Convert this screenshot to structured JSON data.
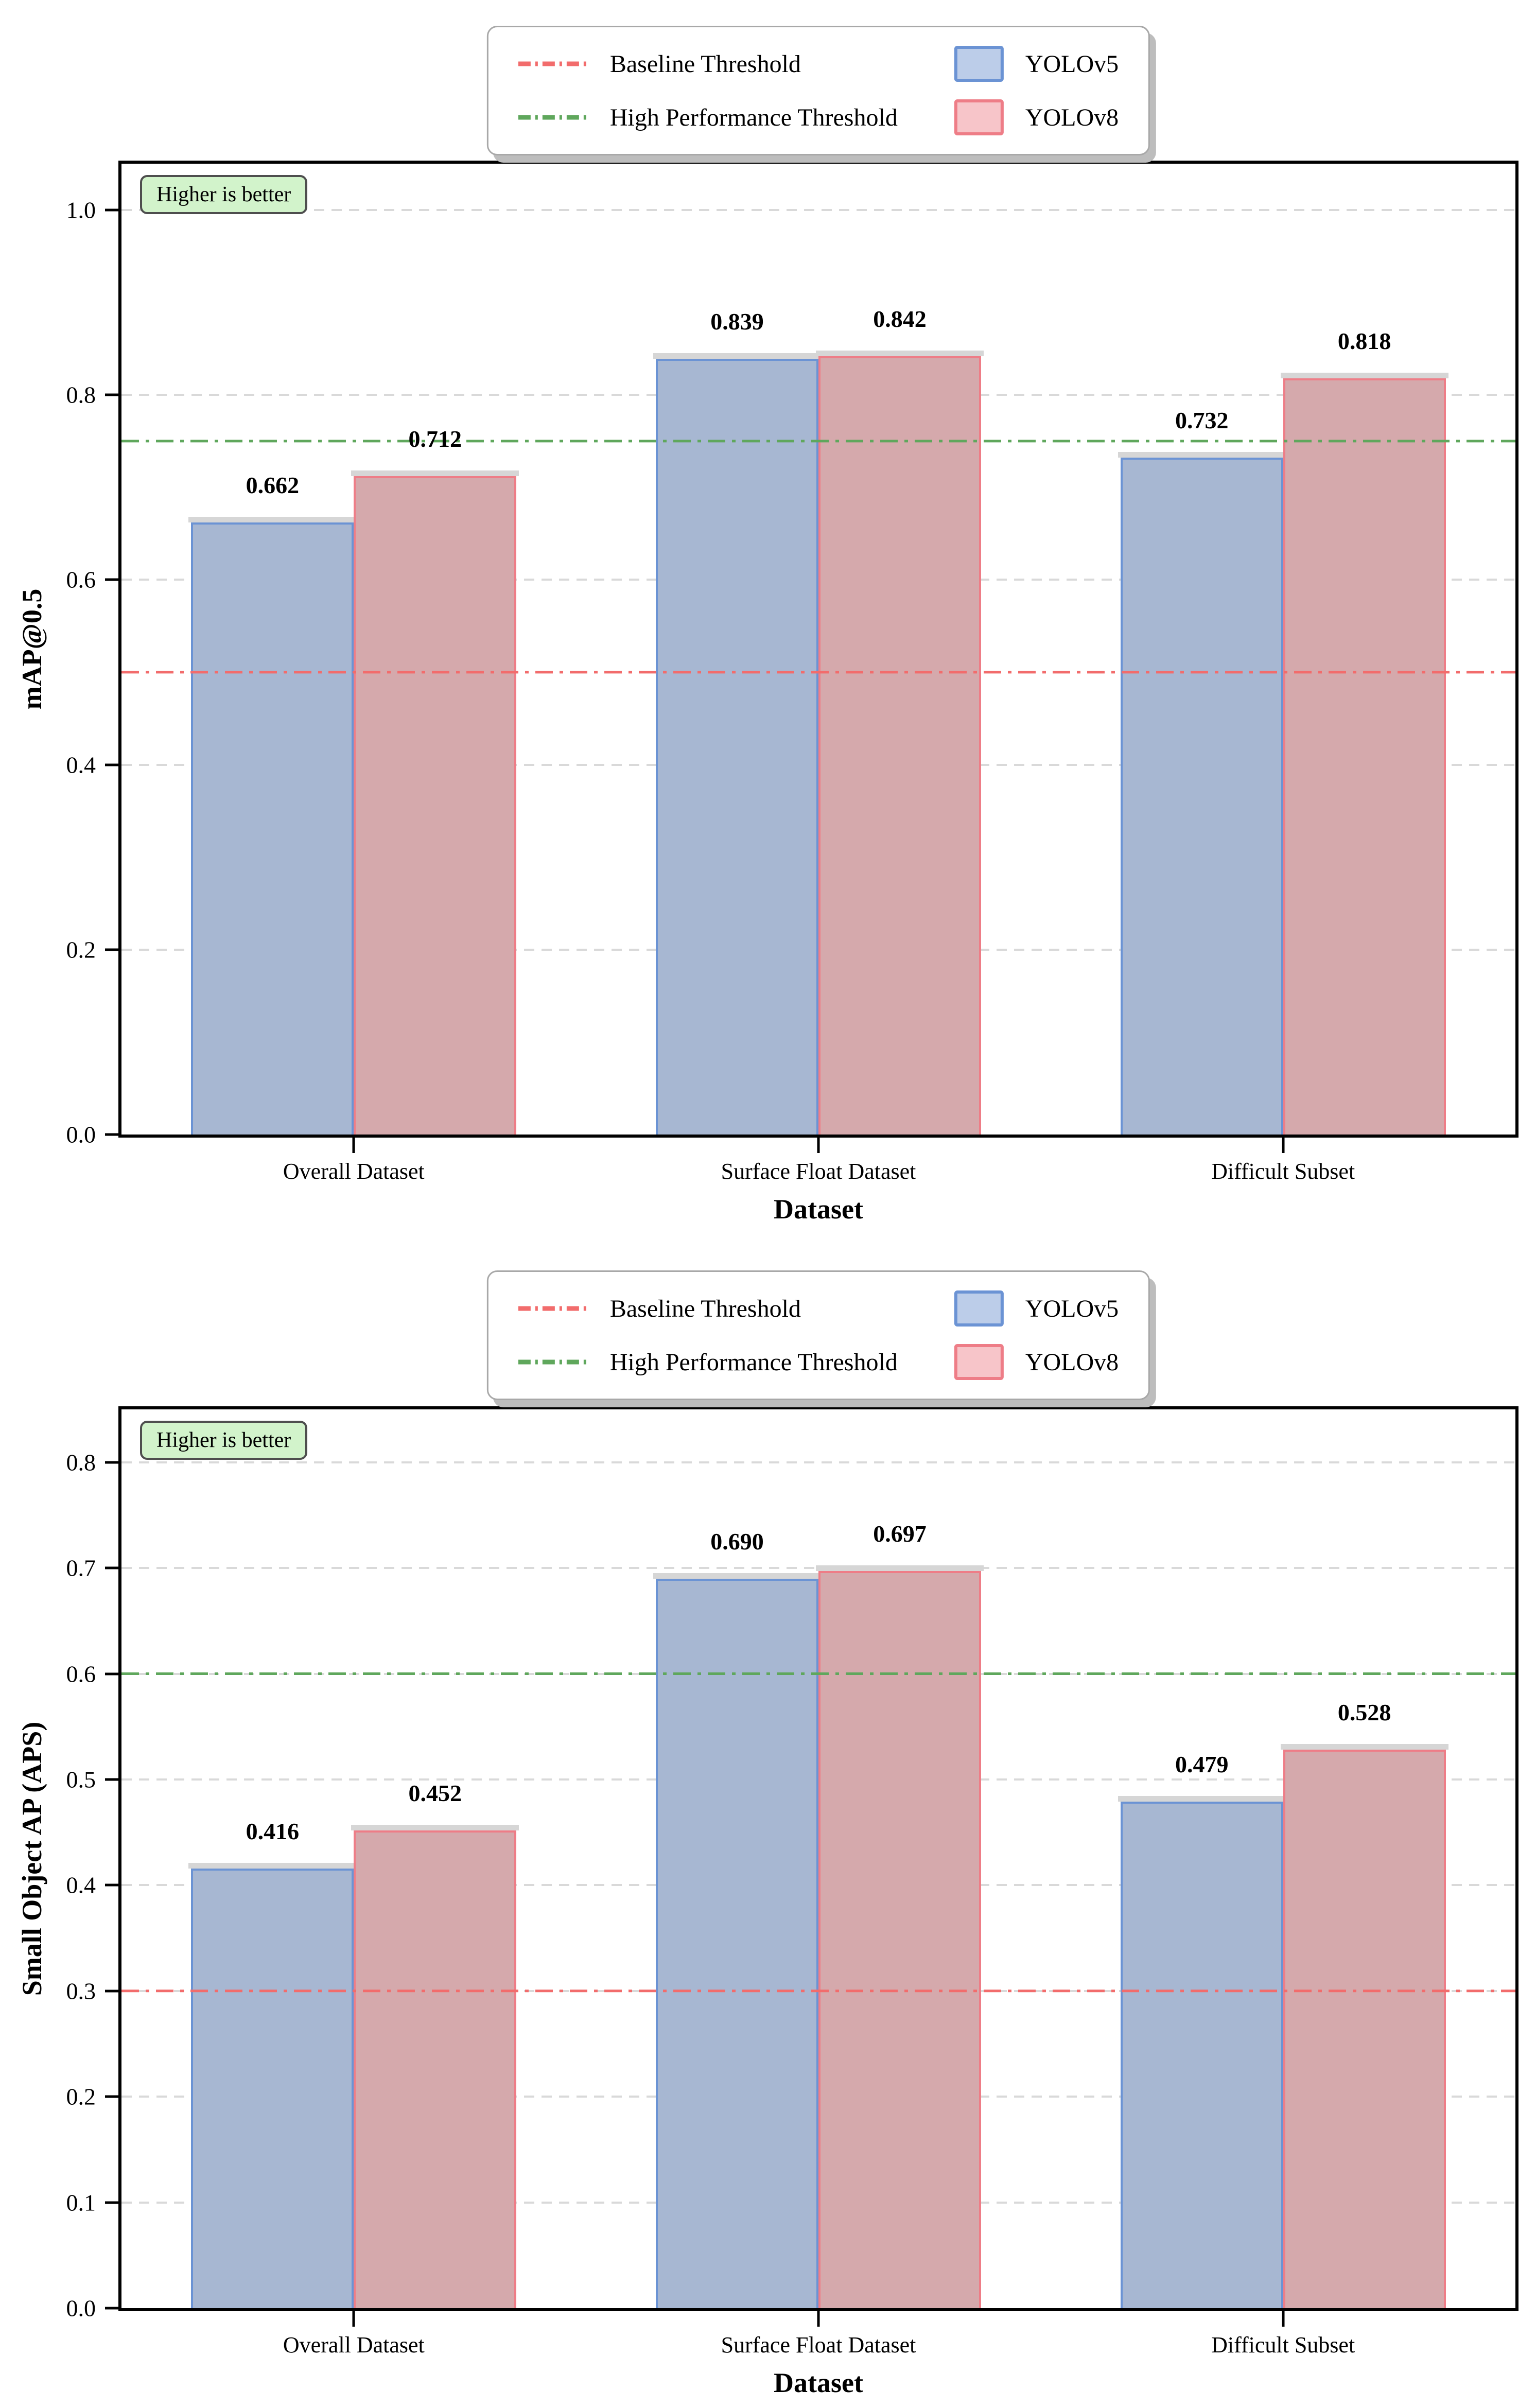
{
  "legend": {
    "baseline_label": "Baseline Threshold",
    "high_performance_label": "High Performance Threshold",
    "series": [
      "YOLOv5",
      "YOLOv8"
    ]
  },
  "colors": {
    "baseline_line": "#f26c6c",
    "high_performance_line": "#5fa75c",
    "yolov5_fill": "#a7b7d2",
    "yolov5_edge": "#6b93d4",
    "yolov8_fill": "#d5a9ac",
    "yolov8_edge": "#ee7d87",
    "legend_yolov5_fill": "#bccde9",
    "legend_yolov8_fill": "#f7c5c9",
    "gridline": "#d9d9d9",
    "badge_bg": "#d2f3cb",
    "badge_border": "#4e4e4e"
  },
  "chart_data": [
    {
      "type": "bar",
      "categories": [
        "Overall Dataset",
        "Surface Float Dataset",
        "Difficult Subset"
      ],
      "series": [
        {
          "name": "YOLOv5",
          "values": [
            0.662,
            0.839,
            0.732
          ]
        },
        {
          "name": "YOLOv8",
          "values": [
            0.712,
            0.842,
            0.818
          ]
        }
      ],
      "xlabel": "Dataset",
      "ylabel": "mAP@0.5",
      "ylim": [
        0,
        1.05
      ],
      "yticks": [
        0.0,
        0.2,
        0.4,
        0.6,
        0.8,
        1.0
      ],
      "ytick_decimals": 1,
      "baseline_threshold": 0.5,
      "high_performance_threshold": 0.75,
      "annotation": "Higher is better",
      "grid": true,
      "legend_position": "top-center",
      "bar_width_fraction": 0.35
    },
    {
      "type": "bar",
      "categories": [
        "Overall Dataset",
        "Surface Float Dataset",
        "Difficult Subset"
      ],
      "series": [
        {
          "name": "YOLOv5",
          "values": [
            0.416,
            0.69,
            0.479
          ]
        },
        {
          "name": "YOLOv8",
          "values": [
            0.452,
            0.697,
            0.528
          ]
        }
      ],
      "xlabel": "Dataset",
      "ylabel": "Small Object AP (APS)",
      "ylim": [
        0,
        0.85
      ],
      "yticks": [
        0.0,
        0.1,
        0.2,
        0.3,
        0.4,
        0.5,
        0.6,
        0.7,
        0.8
      ],
      "ytick_decimals": 1,
      "baseline_threshold": 0.3,
      "high_performance_threshold": 0.6,
      "annotation": "Higher is better",
      "grid": true,
      "legend_position": "top-center",
      "bar_width_fraction": 0.35
    }
  ]
}
